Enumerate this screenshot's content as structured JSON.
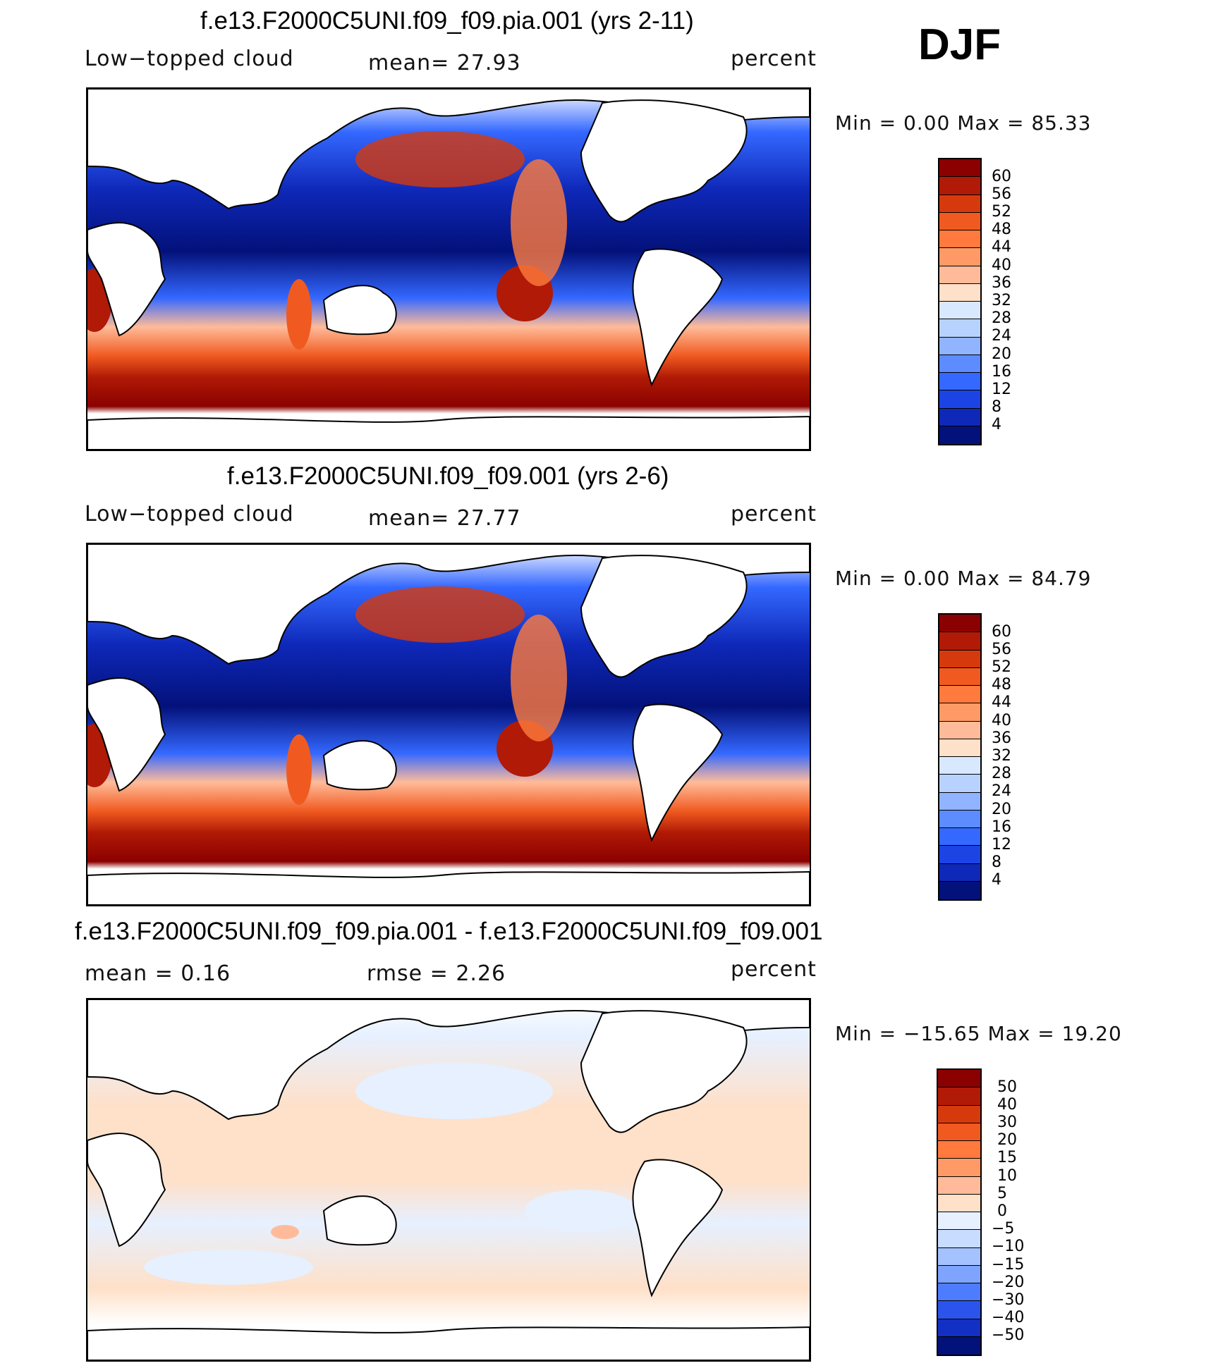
{
  "season": "DJF",
  "panels": [
    {
      "title": "f.e13.F2000C5UNI.f09_f09.pia.001 (yrs 2-11)",
      "left_label": "Low−topped cloud",
      "mid_label": "mean=   27.93",
      "right_label": "percent",
      "minmax": "Min  =     0.00  Max  =    85.33",
      "colorbar_labels": [
        "60",
        "56",
        "52",
        "48",
        "44",
        "40",
        "36",
        "32",
        "28",
        "24",
        "20",
        "16",
        "12",
        "8",
        "4"
      ],
      "colorbar_colors": [
        "#8b0000",
        "#b01a06",
        "#d63a0c",
        "#f05a20",
        "#ff7a3c",
        "#ff9a66",
        "#ffbb99",
        "#ffe0c8",
        "#d8e8ff",
        "#b8d2ff",
        "#90b4ff",
        "#5c8cff",
        "#3468ff",
        "#1c44e4",
        "#0e28b8",
        "#03117a"
      ]
    },
    {
      "title": "f.e13.F2000C5UNI.f09_f09.001 (yrs 2-6)",
      "left_label": "Low−topped cloud",
      "mid_label": "mean=   27.77",
      "right_label": "percent",
      "minmax": "Min  =     0.00  Max  =    84.79",
      "colorbar_labels": [
        "60",
        "56",
        "52",
        "48",
        "44",
        "40",
        "36",
        "32",
        "28",
        "24",
        "20",
        "16",
        "12",
        "8",
        "4"
      ],
      "colorbar_colors": [
        "#8b0000",
        "#b01a06",
        "#d63a0c",
        "#f05a20",
        "#ff7a3c",
        "#ff9a66",
        "#ffbb99",
        "#ffe0c8",
        "#d8e8ff",
        "#b8d2ff",
        "#90b4ff",
        "#5c8cff",
        "#3468ff",
        "#1c44e4",
        "#0e28b8",
        "#03117a"
      ]
    },
    {
      "title": "f.e13.F2000C5UNI.f09_f09.pia.001 - f.e13.F2000C5UNI.f09_f09.001",
      "left_label": "mean  =     0.16",
      "mid_label": "rmse  =     2.26",
      "right_label": "percent",
      "minmax": "Min  =  −15.65  Max  =    19.20",
      "colorbar_labels": [
        "50",
        "40",
        "30",
        "20",
        "15",
        "10",
        "5",
        "0",
        "−5",
        "−10",
        "−15",
        "−20",
        "−30",
        "−40",
        "−50"
      ],
      "colorbar_colors": [
        "#8b0000",
        "#b01a06",
        "#d63a0c",
        "#f05a20",
        "#ff7a3c",
        "#ff9a66",
        "#ffbb99",
        "#ffe0c8",
        "#e6f0ff",
        "#c8dcff",
        "#a4c2ff",
        "#7ea4ff",
        "#4e7cff",
        "#2a54ec",
        "#1230c4",
        "#03117a"
      ]
    }
  ]
}
